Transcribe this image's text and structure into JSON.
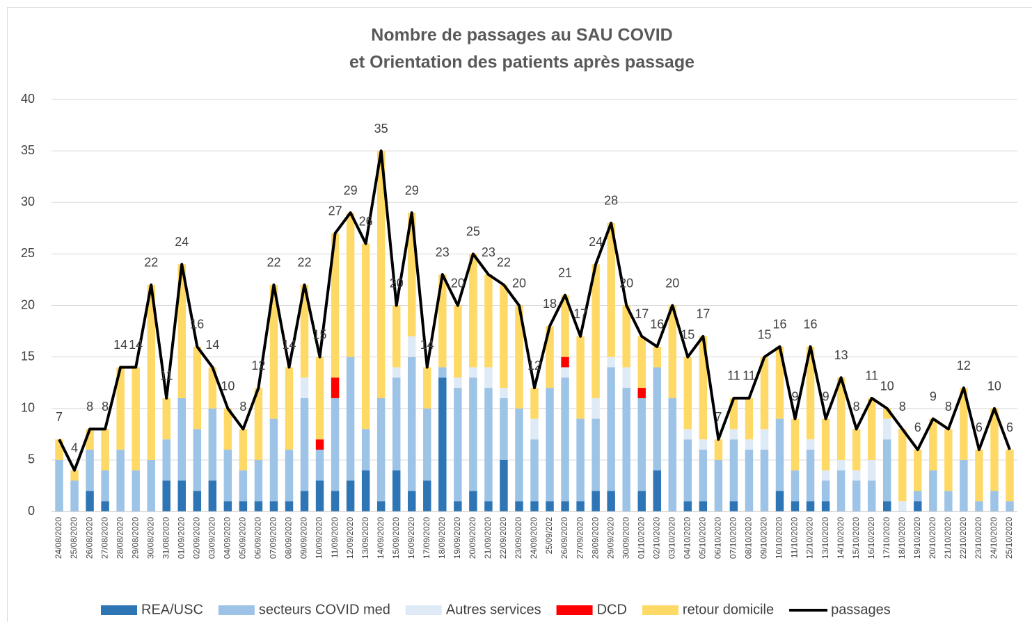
{
  "chart_data": {
    "type": "bar",
    "stacked": true,
    "title_lines": [
      "Nombre de passages au SAU COVID",
      "et Orientation des patients après passage"
    ],
    "categories": [
      "24/08/2020",
      "25/08/2020",
      "26/08/2020",
      "27/08/2020",
      "28/08/2020",
      "29/08/2020",
      "30/08/2020",
      "31/08/2020",
      "01/09/2020",
      "02/09/2020",
      "03/09/2020",
      "04/09/2020",
      "05/09/2020",
      "06/09/2020",
      "07/09/2020",
      "08/09/2020",
      "09/09/2020",
      "10/09/2020",
      "11/09/2020",
      "12/09/2020",
      "13/09/2020",
      "14/09/2020",
      "15/09/2020",
      "16/09/2020",
      "17/09/2020",
      "18/09/2020",
      "19/09/2020",
      "20/09/2020",
      "21/09/2020",
      "22/09/2020",
      "23/09/2020",
      "24/09/2020",
      "25/09/202",
      "26/09/2020",
      "27/09/2020",
      "28/09/2020",
      "29/09/2020",
      "30/09/2020",
      "01/10/2020",
      "02/10/2020",
      "03/10/2020",
      "04/10/2020",
      "05/10/2020",
      "06/10/2020",
      "07/10/2020",
      "08/10/2020",
      "09/10/2020",
      "10/10/2020",
      "11/10/2020",
      "12/10/2020",
      "13/10/2020",
      "14/10/2020",
      "15/10/2020",
      "16/10/2020",
      "17/10/2020",
      "18/10/2020",
      "19/10/2020",
      "20/10/2020",
      "21/10/2020",
      "22/10/2020",
      "23/10/2020",
      "24/10/2020",
      "25/10/2020"
    ],
    "series": [
      {
        "name": "REA/USC",
        "color": "#2e75b6",
        "values": [
          0,
          0,
          2,
          1,
          0,
          0,
          0,
          3,
          3,
          2,
          3,
          1,
          1,
          1,
          1,
          1,
          2,
          3,
          2,
          3,
          4,
          1,
          4,
          2,
          3,
          13,
          1,
          2,
          1,
          5,
          1,
          1,
          1,
          1,
          1,
          2,
          2,
          0,
          2,
          4,
          0,
          1,
          1,
          0,
          1,
          0,
          0,
          2,
          1,
          1,
          1,
          0,
          0,
          0,
          1,
          0,
          1,
          0,
          0,
          0,
          0,
          0,
          0
        ]
      },
      {
        "name": "secteurs COVID med",
        "color": "#9dc3e6",
        "values": [
          5,
          3,
          4,
          3,
          6,
          4,
          5,
          4,
          8,
          6,
          7,
          5,
          3,
          4,
          8,
          5,
          9,
          3,
          9,
          12,
          4,
          10,
          9,
          13,
          7,
          1,
          11,
          11,
          11,
          6,
          9,
          6,
          11,
          12,
          8,
          7,
          12,
          12,
          9,
          10,
          11,
          6,
          5,
          5,
          6,
          6,
          6,
          7,
          3,
          5,
          2,
          4,
          3,
          3,
          6,
          0,
          1,
          4,
          2,
          5,
          1,
          2,
          1
        ]
      },
      {
        "name": "Autres services",
        "color": "#deebf7",
        "values": [
          0,
          0,
          0,
          0,
          0,
          0,
          0,
          0,
          0,
          0,
          0,
          0,
          0,
          0,
          0,
          0,
          2,
          0,
          0,
          0,
          0,
          0,
          1,
          2,
          0,
          0,
          1,
          1,
          2,
          1,
          0,
          2,
          0,
          1,
          0,
          2,
          1,
          2,
          0,
          0,
          0,
          1,
          1,
          0,
          1,
          1,
          2,
          0,
          0,
          1,
          1,
          1,
          1,
          2,
          2,
          1,
          0,
          0,
          0,
          0,
          0,
          0,
          0
        ]
      },
      {
        "name": "DCD",
        "color": "#ff0000",
        "values": [
          0,
          0,
          0,
          0,
          0,
          0,
          0,
          0,
          0,
          0,
          0,
          0,
          0,
          0,
          0,
          0,
          0,
          1,
          2,
          0,
          0,
          0,
          0,
          0,
          0,
          0,
          0,
          0,
          0,
          0,
          0,
          0,
          0,
          1,
          0,
          0,
          0,
          0,
          1,
          0,
          0,
          0,
          0,
          0,
          0,
          0,
          0,
          0,
          0,
          0,
          0,
          0,
          0,
          0,
          0,
          0,
          0,
          0,
          0,
          0,
          0,
          0,
          0
        ]
      },
      {
        "name": "retour domicile",
        "color": "#ffd966",
        "values": [
          2,
          1,
          2,
          4,
          8,
          10,
          17,
          4,
          13,
          8,
          4,
          4,
          4,
          7,
          13,
          8,
          9,
          8,
          14,
          14,
          18,
          24,
          6,
          12,
          4,
          9,
          7,
          11,
          9,
          10,
          10,
          3,
          6,
          6,
          8,
          13,
          13,
          6,
          5,
          2,
          9,
          7,
          10,
          2,
          3,
          4,
          7,
          7,
          5,
          9,
          5,
          8,
          4,
          6,
          1,
          7,
          4,
          5,
          6,
          7,
          5,
          8,
          5
        ]
      },
      {
        "name": "passages",
        "type": "line",
        "color": "#000000",
        "values": [
          7,
          4,
          8,
          8,
          14,
          14,
          22,
          11,
          24,
          16,
          14,
          10,
          8,
          12,
          22,
          14,
          22,
          15,
          27,
          29,
          26,
          35,
          20,
          29,
          14,
          23,
          20,
          25,
          23,
          22,
          20,
          12,
          18,
          21,
          17,
          24,
          28,
          20,
          17,
          16,
          20,
          15,
          17,
          7,
          11,
          11,
          15,
          16,
          9,
          16,
          9,
          13,
          8,
          11,
          10,
          8,
          6,
          9,
          8,
          12,
          6,
          10,
          6
        ]
      }
    ],
    "ylim": [
      0,
      40
    ],
    "yticks": [
      0,
      5,
      10,
      15,
      20,
      25,
      30,
      35,
      40
    ],
    "grid": true,
    "legend": "bottom"
  }
}
